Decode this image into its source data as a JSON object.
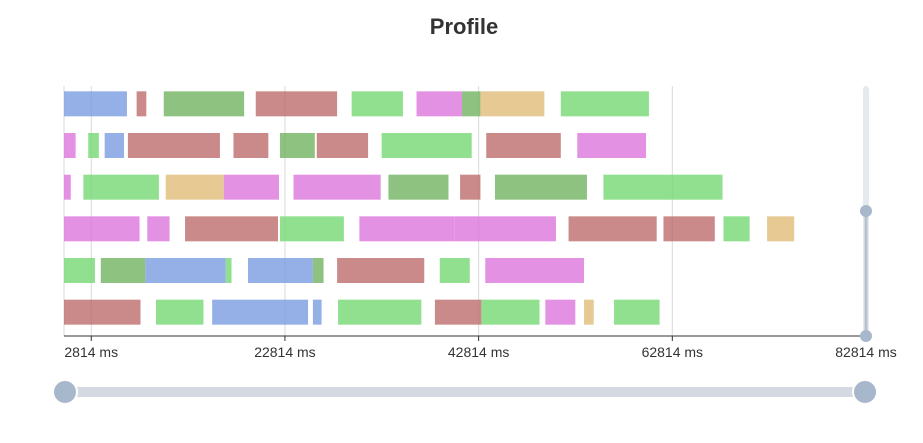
{
  "chart_data": {
    "type": "timeline",
    "title": "Profile",
    "x_unit": "ms",
    "x_range": [
      0,
      82814
    ],
    "x_ticks": [
      2814,
      22814,
      42814,
      62814,
      82814
    ],
    "x_tick_labels": [
      "2814 ms",
      "22814 ms",
      "42814 ms",
      "62814 ms",
      "82814 ms"
    ],
    "colors": {
      "blue": "#7b9ce1",
      "red": "#bd6d6c",
      "green": "#75d874",
      "darkgreen": "#72b362",
      "pink": "#e0bc78",
      "magenta": "#dc77dc",
      "tan": "#e0bc78"
    },
    "rows": [
      {
        "category": "row-1",
        "tasks": [
          {
            "start": 0,
            "end": 6500,
            "color": "#7b9ce1"
          },
          {
            "start": 7500,
            "end": 8500,
            "color": "#bd6d6c"
          },
          {
            "start": 10300,
            "end": 18600,
            "color": "#72b362"
          },
          {
            "start": 19800,
            "end": 28200,
            "color": "#bd6d6c"
          },
          {
            "start": 29700,
            "end": 35000,
            "color": "#75d874"
          },
          {
            "start": 36400,
            "end": 41100,
            "color": "#dc77dc"
          },
          {
            "start": 41100,
            "end": 43000,
            "color": "#72b362"
          },
          {
            "start": 43000,
            "end": 49600,
            "color": "#e0bc78"
          },
          {
            "start": 51300,
            "end": 60400,
            "color": "#75d874"
          }
        ]
      },
      {
        "category": "row-2",
        "tasks": [
          {
            "start": 0,
            "end": 1200,
            "color": "#dc77dc"
          },
          {
            "start": 2500,
            "end": 3600,
            "color": "#75d874"
          },
          {
            "start": 4200,
            "end": 6200,
            "color": "#7b9ce1"
          },
          {
            "start": 6600,
            "end": 16100,
            "color": "#bd6d6c"
          },
          {
            "start": 17500,
            "end": 21100,
            "color": "#bd6d6c"
          },
          {
            "start": 22300,
            "end": 25900,
            "color": "#72b362"
          },
          {
            "start": 26100,
            "end": 31400,
            "color": "#bd6d6c"
          },
          {
            "start": 32800,
            "end": 42100,
            "color": "#75d874"
          },
          {
            "start": 43600,
            "end": 51300,
            "color": "#bd6d6c"
          },
          {
            "start": 53000,
            "end": 60100,
            "color": "#dc77dc"
          }
        ]
      },
      {
        "category": "row-3",
        "tasks": [
          {
            "start": 0,
            "end": 700,
            "color": "#dc77dc"
          },
          {
            "start": 2000,
            "end": 9800,
            "color": "#75d874"
          },
          {
            "start": 10500,
            "end": 16500,
            "color": "#e0bc78"
          },
          {
            "start": 16500,
            "end": 22200,
            "color": "#dc77dc"
          },
          {
            "start": 23700,
            "end": 32700,
            "color": "#dc77dc"
          },
          {
            "start": 33500,
            "end": 39700,
            "color": "#72b362"
          },
          {
            "start": 40900,
            "end": 43000,
            "color": "#bd6d6c"
          },
          {
            "start": 44500,
            "end": 54000,
            "color": "#72b362"
          },
          {
            "start": 55700,
            "end": 63200,
            "color": "#75d874"
          },
          {
            "start": 63200,
            "end": 68000,
            "color": "#75d874"
          }
        ]
      },
      {
        "category": "row-4",
        "tasks": [
          {
            "start": 0,
            "end": 7800,
            "color": "#dc77dc"
          },
          {
            "start": 8600,
            "end": 10900,
            "color": "#dc77dc"
          },
          {
            "start": 12500,
            "end": 22100,
            "color": "#bd6d6c"
          },
          {
            "start": 22300,
            "end": 28900,
            "color": "#75d874"
          },
          {
            "start": 30500,
            "end": 40300,
            "color": "#dc77dc"
          },
          {
            "start": 40300,
            "end": 50800,
            "color": "#dc77dc"
          },
          {
            "start": 52100,
            "end": 61200,
            "color": "#bd6d6c"
          },
          {
            "start": 61900,
            "end": 67200,
            "color": "#bd6d6c"
          },
          {
            "start": 68100,
            "end": 70800,
            "color": "#75d874"
          },
          {
            "start": 72600,
            "end": 75400,
            "color": "#e0bc78"
          }
        ]
      },
      {
        "category": "row-5",
        "tasks": [
          {
            "start": 0,
            "end": 3200,
            "color": "#75d874"
          },
          {
            "start": 3800,
            "end": 8400,
            "color": "#72b362"
          },
          {
            "start": 8400,
            "end": 16700,
            "color": "#7b9ce1"
          },
          {
            "start": 16700,
            "end": 17300,
            "color": "#75d874"
          },
          {
            "start": 19000,
            "end": 25700,
            "color": "#7b9ce1"
          },
          {
            "start": 25700,
            "end": 26800,
            "color": "#72b362"
          },
          {
            "start": 28200,
            "end": 37200,
            "color": "#bd6d6c"
          },
          {
            "start": 38800,
            "end": 41900,
            "color": "#75d874"
          },
          {
            "start": 43500,
            "end": 47500,
            "color": "#dc77dc"
          },
          {
            "start": 47500,
            "end": 53700,
            "color": "#dc77dc"
          }
        ]
      },
      {
        "category": "row-6",
        "tasks": [
          {
            "start": 0,
            "end": 7900,
            "color": "#bd6d6c"
          },
          {
            "start": 9500,
            "end": 14400,
            "color": "#75d874"
          },
          {
            "start": 15300,
            "end": 25200,
            "color": "#7b9ce1"
          },
          {
            "start": 25700,
            "end": 26600,
            "color": "#7b9ce1"
          },
          {
            "start": 28300,
            "end": 36900,
            "color": "#75d874"
          },
          {
            "start": 38300,
            "end": 43100,
            "color": "#bd6d6c"
          },
          {
            "start": 43100,
            "end": 49100,
            "color": "#75d874"
          },
          {
            "start": 49700,
            "end": 52800,
            "color": "#dc77dc"
          },
          {
            "start": 53700,
            "end": 54700,
            "color": "#e0bc78"
          },
          {
            "start": 56800,
            "end": 61500,
            "color": "#75d874"
          }
        ]
      }
    ],
    "zoom": {
      "x_slider": {
        "start_percent": 0,
        "end_percent": 100
      },
      "y_slider": {
        "start_percent": 0,
        "end_percent": 100
      }
    }
  },
  "accent": {
    "grid": "#d9d9d9",
    "axis": "#333333",
    "slider_track": "#d4d9e2",
    "slider_handle": "#a7b7cc"
  }
}
